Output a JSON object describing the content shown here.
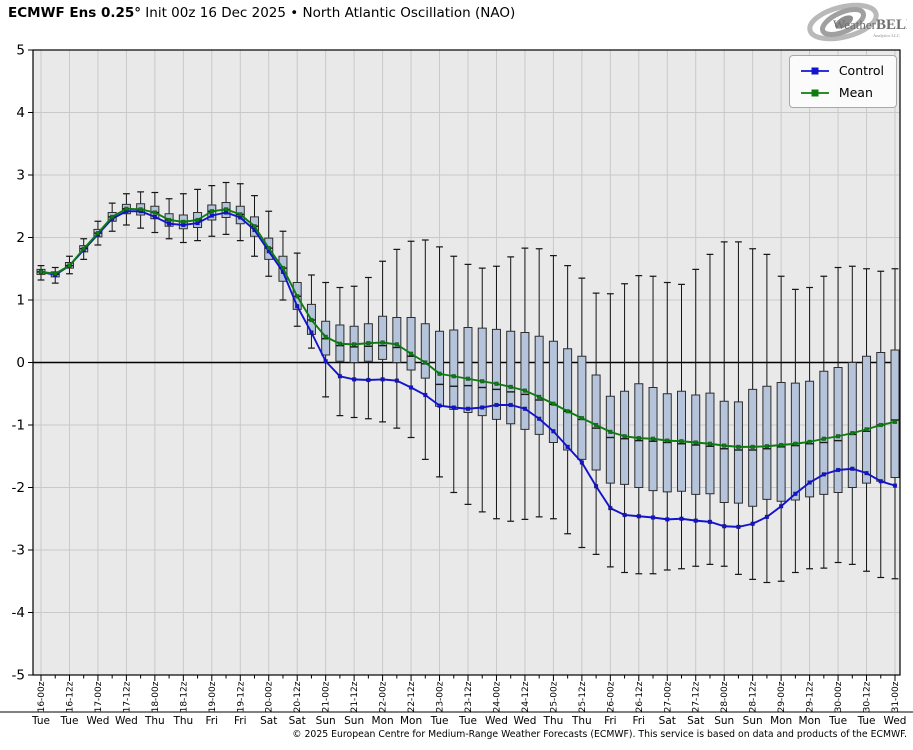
{
  "header": {
    "title_bold": "ECMWF Ens 0.25°",
    "title_rest": " Init 00z 16 Dec 2025 • North Atlantic Oscillation (NAO)",
    "logo_weather": "Weather",
    "logo_bell": "BELL",
    "logo_sub": "Analytics LLC"
  },
  "legend": {
    "control": "Control",
    "mean": "Mean"
  },
  "footer": {
    "copyright": "© 2025 European Centre for Medium-Range Weather Forecasts (ECMWF). This service is based on data and products of the ECMWF."
  },
  "chart_data": {
    "type": "box",
    "title": "ECMWF Ens 0.25° Init 00z 16 Dec 2025 • North Atlantic Oscillation (NAO)",
    "ylabel": "",
    "ylim": [
      -5,
      5
    ],
    "yticks": [
      5,
      4,
      3,
      2,
      1,
      0,
      -1,
      -2,
      -3,
      -4,
      -5
    ],
    "grid": true,
    "legend_position": "upper right",
    "x_step_hours": 6,
    "x_major_labels": [
      "16-00z",
      "16-12z",
      "17-00z",
      "17-12z",
      "18-00z",
      "18-12z",
      "19-00z",
      "19-12z",
      "20-00z",
      "20-12z",
      "21-00z",
      "21-12z",
      "22-00z",
      "22-12z",
      "23-00z",
      "23-12z",
      "24-00z",
      "24-12z",
      "25-00z",
      "25-12z",
      "26-00z",
      "26-12z",
      "27-00z",
      "27-12z",
      "28-00z",
      "28-12z",
      "29-00z",
      "29-12z",
      "30-00z",
      "30-12z",
      "31-00z"
    ],
    "x_day_labels": [
      "Tue",
      "Tue",
      "Wed",
      "Wed",
      "Thu",
      "Thu",
      "Fri",
      "Fri",
      "Sat",
      "Sat",
      "Sun",
      "Sun",
      "Mon",
      "Mon",
      "Tue",
      "Tue",
      "Wed",
      "Wed",
      "Thu",
      "Thu",
      "Fri",
      "Fri",
      "Sat",
      "Sat",
      "Sun",
      "Sun",
      "Mon",
      "Mon",
      "Tue",
      "Tue",
      "Wed"
    ],
    "series": [
      {
        "name": "Control",
        "color": "#1414cf",
        "values": [
          1.45,
          1.4,
          1.55,
          1.8,
          2.05,
          2.3,
          2.42,
          2.42,
          2.33,
          2.22,
          2.2,
          2.23,
          2.35,
          2.4,
          2.32,
          2.12,
          1.78,
          1.45,
          0.9,
          0.48,
          0.02,
          -0.22,
          -0.27,
          -0.28,
          -0.27,
          -0.29,
          -0.4,
          -0.52,
          -0.69,
          -0.72,
          -0.74,
          -0.72,
          -0.68,
          -0.68,
          -0.74,
          -0.9,
          -1.1,
          -1.35,
          -1.6,
          -1.98,
          -2.33,
          -2.44,
          -2.46,
          -2.48,
          -2.51,
          -2.5,
          -2.53,
          -2.55,
          -2.62,
          -2.63,
          -2.58,
          -2.47,
          -2.3,
          -2.1,
          -1.92,
          -1.79,
          -1.72,
          -1.7,
          -1.77,
          -1.9,
          -1.97
        ]
      },
      {
        "name": "Mean",
        "color": "#0d7d12",
        "values": [
          1.45,
          1.42,
          1.55,
          1.82,
          2.07,
          2.33,
          2.46,
          2.45,
          2.4,
          2.28,
          2.25,
          2.28,
          2.42,
          2.45,
          2.37,
          2.18,
          1.83,
          1.51,
          1.06,
          0.68,
          0.41,
          0.3,
          0.29,
          0.31,
          0.32,
          0.29,
          0.14,
          0.0,
          -0.18,
          -0.22,
          -0.26,
          -0.3,
          -0.34,
          -0.39,
          -0.45,
          -0.55,
          -0.66,
          -0.78,
          -0.89,
          -1.0,
          -1.11,
          -1.18,
          -1.21,
          -1.22,
          -1.25,
          -1.26,
          -1.28,
          -1.3,
          -1.33,
          -1.35,
          -1.35,
          -1.34,
          -1.32,
          -1.3,
          -1.27,
          -1.22,
          -1.18,
          -1.13,
          -1.07,
          -1.0,
          -0.95
        ]
      }
    ],
    "boxes": {
      "whisker_low": [
        1.32,
        1.27,
        1.42,
        1.65,
        1.88,
        2.1,
        2.2,
        2.15,
        2.08,
        1.98,
        1.92,
        1.95,
        2.02,
        2.05,
        1.95,
        1.7,
        1.38,
        1.0,
        0.58,
        0.23,
        -0.55,
        -0.85,
        -0.88,
        -0.9,
        -0.95,
        -1.05,
        -1.2,
        -1.55,
        -1.83,
        -2.08,
        -2.27,
        -2.39,
        -2.5,
        -2.54,
        -2.51,
        -2.47,
        -2.5,
        -2.74,
        -2.96,
        -3.07,
        -3.27,
        -3.36,
        -3.38,
        -3.38,
        -3.32,
        -3.3,
        -3.26,
        -3.23,
        -3.26,
        -3.39,
        -3.47,
        -3.52,
        -3.5,
        -3.36,
        -3.3,
        -3.29,
        -3.2,
        -3.23,
        -3.34,
        -3.44,
        -3.46
      ],
      "q1": [
        1.41,
        1.37,
        1.51,
        1.77,
        2.01,
        2.26,
        2.38,
        2.36,
        2.3,
        2.18,
        2.14,
        2.16,
        2.28,
        2.32,
        2.22,
        2.02,
        1.65,
        1.3,
        0.85,
        0.45,
        0.12,
        0.02,
        0.0,
        0.02,
        0.05,
        0.0,
        -0.12,
        -0.25,
        -0.7,
        -0.75,
        -0.8,
        -0.85,
        -0.91,
        -0.98,
        -1.07,
        -1.15,
        -1.28,
        -1.4,
        -1.55,
        -1.72,
        -1.93,
        -1.95,
        -2.0,
        -2.05,
        -2.07,
        -2.06,
        -2.11,
        -2.1,
        -2.24,
        -2.25,
        -2.3,
        -2.19,
        -2.22,
        -2.2,
        -2.15,
        -2.11,
        -2.08,
        -2.0,
        -1.93,
        -1.9,
        -1.84
      ],
      "median": [
        1.45,
        1.41,
        1.55,
        1.82,
        2.07,
        2.33,
        2.46,
        2.45,
        2.4,
        2.28,
        2.25,
        2.28,
        2.42,
        2.45,
        2.37,
        2.18,
        1.83,
        1.51,
        1.06,
        0.68,
        0.38,
        0.27,
        0.25,
        0.26,
        0.27,
        0.24,
        0.1,
        -0.02,
        -0.35,
        -0.38,
        -0.37,
        -0.4,
        -0.43,
        -0.47,
        -0.51,
        -0.6,
        -0.67,
        -0.78,
        -0.91,
        -1.05,
        -1.2,
        -1.22,
        -1.25,
        -1.26,
        -1.28,
        -1.3,
        -1.32,
        -1.34,
        -1.38,
        -1.4,
        -1.4,
        -1.38,
        -1.35,
        -1.33,
        -1.3,
        -1.28,
        -1.25,
        -1.15,
        -1.1,
        -1.0,
        -0.92
      ],
      "q3": [
        1.49,
        1.45,
        1.6,
        1.87,
        2.13,
        2.4,
        2.53,
        2.54,
        2.5,
        2.38,
        2.36,
        2.4,
        2.52,
        2.56,
        2.5,
        2.33,
        1.99,
        1.7,
        1.28,
        0.93,
        0.66,
        0.6,
        0.58,
        0.62,
        0.74,
        0.72,
        0.72,
        0.62,
        0.5,
        0.52,
        0.56,
        0.55,
        0.53,
        0.5,
        0.48,
        0.42,
        0.34,
        0.22,
        0.1,
        -0.2,
        -0.54,
        -0.46,
        -0.34,
        -0.4,
        -0.5,
        -0.46,
        -0.52,
        -0.49,
        -0.62,
        -0.63,
        -0.43,
        -0.38,
        -0.32,
        -0.33,
        -0.3,
        -0.14,
        -0.08,
        0.0,
        0.1,
        0.16,
        0.2
      ],
      "whisker_high": [
        1.55,
        1.52,
        1.7,
        1.98,
        2.26,
        2.55,
        2.7,
        2.73,
        2.72,
        2.62,
        2.7,
        2.77,
        2.83,
        2.88,
        2.86,
        2.67,
        2.42,
        2.1,
        1.75,
        1.4,
        1.28,
        1.2,
        1.22,
        1.36,
        1.62,
        1.81,
        1.94,
        1.96,
        1.85,
        1.7,
        1.57,
        1.51,
        1.54,
        1.69,
        1.83,
        1.82,
        1.71,
        1.55,
        1.35,
        1.11,
        1.1,
        1.26,
        1.39,
        1.38,
        1.28,
        1.25,
        1.49,
        1.73,
        1.93,
        1.93,
        1.82,
        1.73,
        1.38,
        1.17,
        1.2,
        1.38,
        1.52,
        1.54,
        1.5,
        1.46,
        1.5
      ]
    },
    "styles": {
      "plot_bg": "#e9e9e9",
      "grid_color": "#c9c9c9",
      "box_fill": "#b5c4da",
      "box_edge": "#2e2e2e",
      "whisker_color": "#141414",
      "zero_line": "#000000",
      "border": "#000000"
    }
  }
}
